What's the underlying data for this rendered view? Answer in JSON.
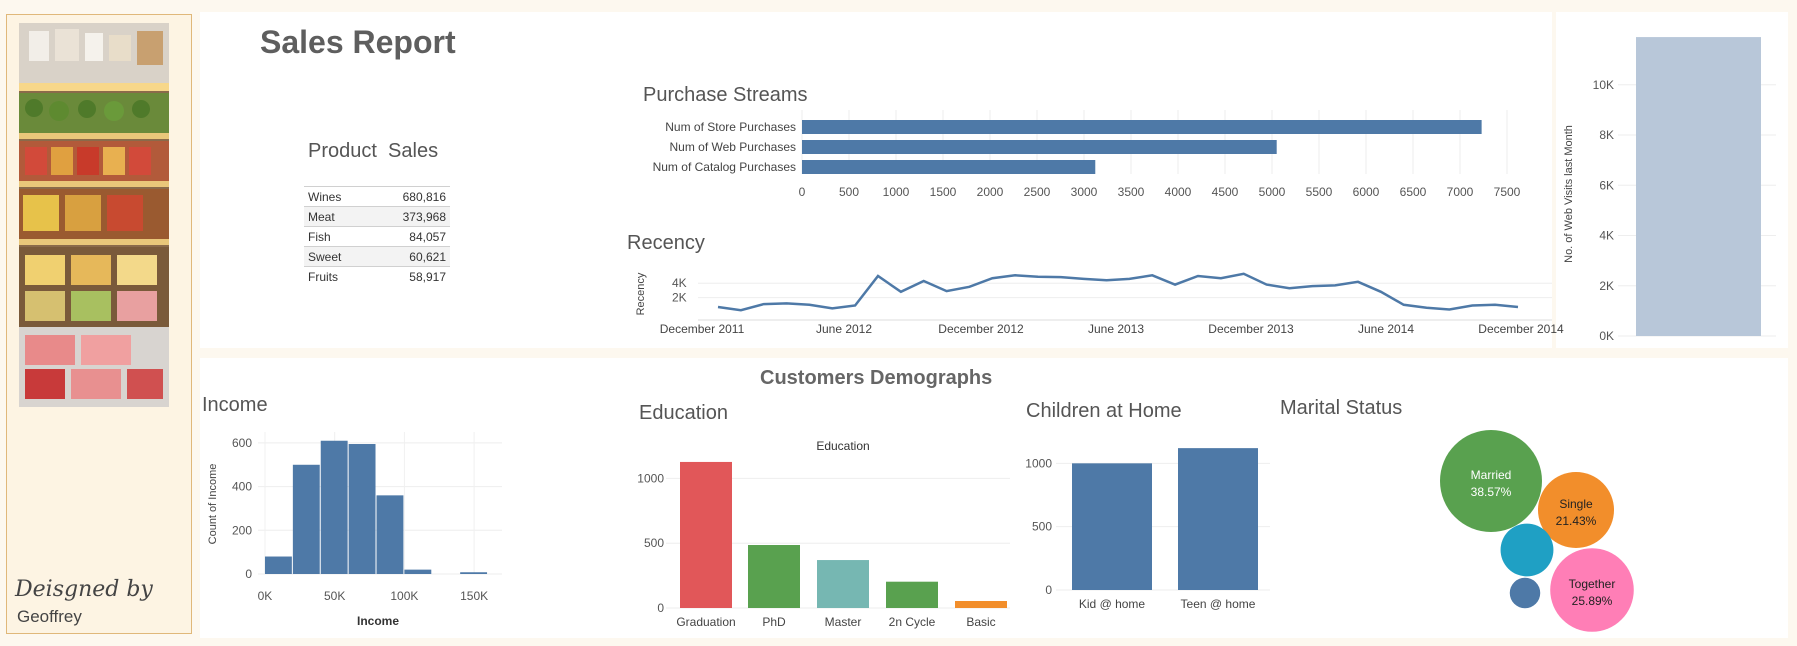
{
  "page": {
    "title": "Sales Report",
    "designed_by_label": "Deisgned by",
    "designer": "Geoffrey",
    "demographics_title": "Customers Demographs",
    "product_sales_title": "Product  Sales"
  },
  "product_sales": [
    {
      "category": "Wines",
      "value": "680,816"
    },
    {
      "category": "Meat",
      "value": "373,968"
    },
    {
      "category": "Fish",
      "value": "84,057"
    },
    {
      "category": "Sweet",
      "value": "60,621"
    },
    {
      "category": "Fruits",
      "value": "58,917"
    }
  ],
  "chart_data": [
    {
      "id": "purchase",
      "type": "bar",
      "orientation": "horizontal",
      "title": "Purchase Streams",
      "categories": [
        "Num of Store Purchases",
        "Num of Web Purchases",
        "Num of Catalog Purchases"
      ],
      "values": [
        7230,
        5050,
        3120
      ],
      "xlim": [
        0,
        7500
      ],
      "ticks": [
        0,
        500,
        1000,
        1500,
        2000,
        2500,
        3000,
        3500,
        4000,
        4500,
        5000,
        5500,
        6000,
        6500,
        7000,
        7500
      ],
      "color": "#4e79a7"
    },
    {
      "id": "recency",
      "type": "line",
      "title": "Recency",
      "ylabel": "Recency",
      "x_labels": [
        "December 2011",
        "June 2012",
        "December 2012",
        "June 2013",
        "December 2013",
        "June 2014",
        "December 2014"
      ],
      "y_ticks": [
        {
          "v": 2000,
          "label": "2K"
        },
        {
          "v": 4000,
          "label": "4K"
        }
      ],
      "ylim": [
        0,
        5000
      ],
      "values": [
        700,
        250,
        1100,
        1200,
        1000,
        500,
        900,
        5000,
        2800,
        4300,
        2900,
        3500,
        4700,
        5100,
        4900,
        4850,
        4600,
        4400,
        4600,
        5100,
        3800,
        5000,
        4700,
        5300,
        3800,
        3300,
        3600,
        3700,
        4200,
        2800,
        1000,
        600,
        350,
        900,
        1000,
        700
      ],
      "color": "#4e79a7"
    },
    {
      "id": "webvisits",
      "type": "bar",
      "ylabel": "No. of Web Visits last Month",
      "values": [
        11900
      ],
      "ylim": [
        0,
        12500
      ],
      "y_ticks": [
        {
          "v": 0,
          "label": "0K"
        },
        {
          "v": 2000,
          "label": "2K"
        },
        {
          "v": 4000,
          "label": "4K"
        },
        {
          "v": 6000,
          "label": "6K"
        },
        {
          "v": 8000,
          "label": "8K"
        },
        {
          "v": 10000,
          "label": "10K"
        }
      ],
      "color": "#b8c7d9"
    },
    {
      "id": "income",
      "type": "bar",
      "title": "Income",
      "xlabel": "Income",
      "ylabel": "Count of Income",
      "bins": [
        {
          "x0": 0,
          "x1": 20000,
          "count": 80
        },
        {
          "x0": 20000,
          "x1": 40000,
          "count": 500
        },
        {
          "x0": 40000,
          "x1": 60000,
          "count": 610
        },
        {
          "x0": 60000,
          "x1": 80000,
          "count": 595
        },
        {
          "x0": 80000,
          "x1": 100000,
          "count": 360
        },
        {
          "x0": 100000,
          "x1": 120000,
          "count": 20
        },
        {
          "x0": 140000,
          "x1": 160000,
          "count": 8
        }
      ],
      "xlim": [
        -5000,
        170000
      ],
      "ylim": [
        0,
        650
      ],
      "x_ticks": [
        {
          "v": 0,
          "label": "0K"
        },
        {
          "v": 50000,
          "label": "50K"
        },
        {
          "v": 100000,
          "label": "100K"
        },
        {
          "v": 150000,
          "label": "150K"
        }
      ],
      "y_ticks": [
        0,
        200,
        400,
        600
      ],
      "color": "#4e79a7"
    },
    {
      "id": "education",
      "type": "bar",
      "title": "Education",
      "subtitle": "Education",
      "categories": [
        "Graduation",
        "PhD",
        "Master",
        "2n Cycle",
        "Basic"
      ],
      "values": [
        1127,
        486,
        370,
        203,
        54
      ],
      "colors": [
        "#e15759",
        "#59a14f",
        "#76b7b2",
        "#59a14f",
        "#f28e2b"
      ],
      "ylim": [
        0,
        1250
      ],
      "y_ticks": [
        0,
        500,
        1000
      ]
    },
    {
      "id": "children",
      "type": "bar",
      "title": "Children at Home",
      "categories": [
        "Kid @ home",
        "Teen @ home"
      ],
      "values": [
        1000,
        1120
      ],
      "ylim": [
        0,
        1200
      ],
      "y_ticks": [
        0,
        500,
        1000
      ],
      "color": "#4e79a7"
    },
    {
      "id": "marital",
      "type": "bubble",
      "title": "Marital Status",
      "bubbles": [
        {
          "name": "Married",
          "pct": "38.57%",
          "value": 38.57,
          "color": "#59a14f",
          "labeled": true
        },
        {
          "name": "Single",
          "pct": "21.43%",
          "value": 21.43,
          "color": "#f28e2b",
          "labeled": true
        },
        {
          "name": "Together",
          "pct": "25.89%",
          "value": 25.89,
          "color": "#ff7eb6",
          "labeled": true
        },
        {
          "name": "",
          "pct": "",
          "value": 10.36,
          "color": "#1fa0c4",
          "labeled": false
        },
        {
          "name": "",
          "pct": "",
          "value": 3.44,
          "color": "#4e79a7",
          "labeled": false
        }
      ]
    }
  ]
}
